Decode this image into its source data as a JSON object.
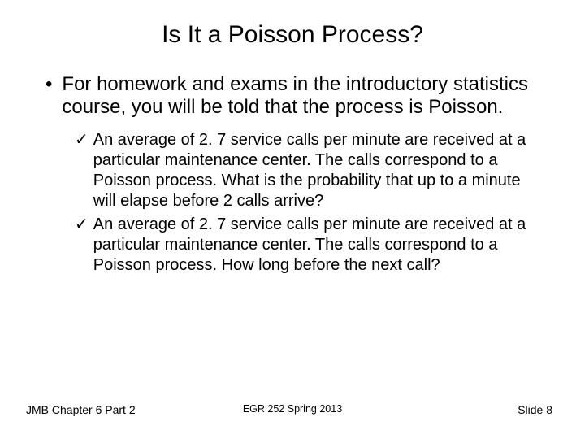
{
  "title": "Is It a Poisson Process?",
  "bullet1": "For homework and exams in the introductory statistics course, you will be told that the process is Poisson.",
  "check1": "An average of 2. 7 service calls per minute are received at a particular maintenance center. The calls correspond to a Poisson process. What is the probability that up to a minute will elapse before 2 calls arrive?",
  "check2": "An average of 2. 7 service calls per minute are received at a particular maintenance center. The calls correspond to a Poisson process. How long before the next call?",
  "footer": {
    "left": "JMB Chapter 6 Part 2",
    "center": "EGR 252 Spring 2013",
    "right": "Slide  8"
  }
}
